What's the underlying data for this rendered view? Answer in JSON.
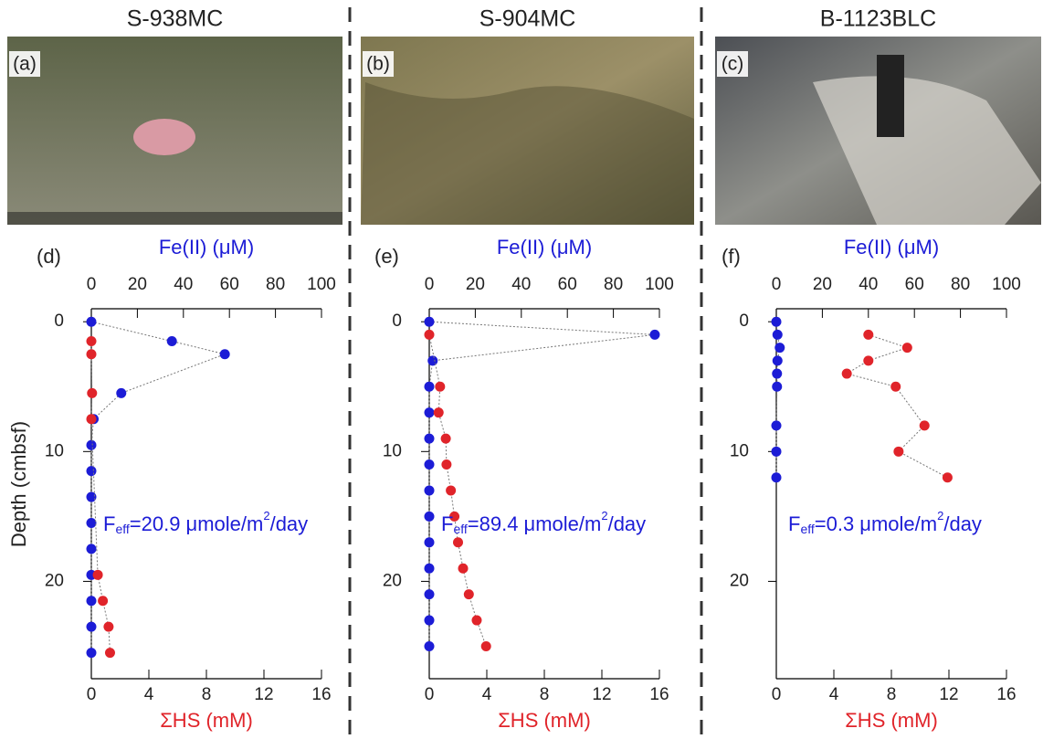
{
  "photos": [
    {
      "label": "(a)"
    },
    {
      "label": "(b)"
    },
    {
      "label": "(c)"
    }
  ],
  "chart_data": [
    {
      "type": "line",
      "title": "S-938MC",
      "panel_label": "(d)",
      "xlabel": "Fe(II) (μM)",
      "x2label": "ΣHS (mM)",
      "ylabel": "Depth (cmbsf)",
      "xlim": [
        0,
        100
      ],
      "xticks": [
        0,
        20,
        40,
        60,
        80,
        100
      ],
      "x2lim": [
        0,
        16
      ],
      "x2ticks": [
        0,
        4,
        8,
        12,
        16
      ],
      "ylim": [
        -1,
        27.5
      ],
      "yticks": [
        0,
        10,
        20
      ],
      "y_inverted": true,
      "series": [
        {
          "color": "#1c1cd6",
          "axis": "x",
          "depth": [
            0,
            1.5,
            2.5,
            5.5,
            7.5,
            9.5,
            11.5,
            13.5,
            15.5,
            17.5,
            19.5,
            21.5,
            23.5,
            25.5
          ],
          "values": [
            0,
            35,
            58,
            13,
            1,
            0,
            0,
            0,
            0,
            0,
            0,
            0,
            0,
            0
          ]
        },
        {
          "color": "#e0242a",
          "axis": "x2",
          "depth": [
            1.5,
            2.5,
            5.5,
            7.5,
            19.5,
            21.5,
            23.5,
            25.5
          ],
          "values": [
            0,
            0,
            0.05,
            0,
            0.45,
            0.8,
            1.2,
            1.3
          ]
        }
      ],
      "annotation": {
        "prefix": "F",
        "sub": "eff",
        "main": "=20.9 μmole/m",
        "sup": "2",
        "suffix": "/day"
      }
    },
    {
      "type": "line",
      "title": "S-904MC",
      "panel_label": "(e)",
      "xlabel": "Fe(II) (μM)",
      "x2label": "ΣHS (mM)",
      "xlim": [
        0,
        100
      ],
      "xticks": [
        0,
        20,
        40,
        60,
        80,
        100
      ],
      "x2lim": [
        0,
        16
      ],
      "x2ticks": [
        0,
        4,
        8,
        12,
        16
      ],
      "ylim": [
        -1,
        27.5
      ],
      "yticks": [
        0,
        10,
        20
      ],
      "y_inverted": true,
      "series": [
        {
          "color": "#1c1cd6",
          "axis": "x",
          "depth": [
            0,
            1,
            3,
            5,
            7,
            9,
            11,
            13,
            15,
            17,
            19,
            21,
            23,
            25
          ],
          "values": [
            0,
            98,
            1.5,
            0,
            0,
            0,
            0,
            0,
            0,
            0,
            0,
            0,
            0,
            0
          ]
        },
        {
          "color": "#e0242a",
          "axis": "x2",
          "depth": [
            1,
            5,
            7,
            9,
            11,
            13,
            15,
            17,
            19,
            21,
            23,
            25
          ],
          "values": [
            0,
            0.75,
            0.65,
            1.15,
            1.2,
            1.5,
            1.75,
            2.0,
            2.35,
            2.75,
            3.3,
            3.95
          ]
        }
      ],
      "annotation": {
        "prefix": "F",
        "sub": "eff",
        "main": "=89.4 μmole/m",
        "sup": "2",
        "suffix": "/day"
      }
    },
    {
      "type": "line",
      "title": "B-1123BLC",
      "panel_label": "(f)",
      "xlabel": "Fe(II) (μM)",
      "x2label": "ΣHS (mM)",
      "xlim": [
        0,
        100
      ],
      "xticks": [
        0,
        20,
        40,
        60,
        80,
        100
      ],
      "x2lim": [
        0,
        16
      ],
      "x2ticks": [
        0,
        4,
        8,
        12,
        16
      ],
      "ylim": [
        -1,
        27.5
      ],
      "yticks": [
        0,
        10,
        20
      ],
      "y_inverted": true,
      "series": [
        {
          "color": "#1c1cd6",
          "axis": "x",
          "depth": [
            0,
            1,
            2,
            3,
            4,
            5,
            8,
            10,
            12
          ],
          "values": [
            0,
            0.5,
            1.5,
            0.5,
            0.3,
            0.3,
            0,
            0,
            0
          ]
        },
        {
          "color": "#e0242a",
          "axis": "x2",
          "depth": [
            1,
            2,
            3,
            4,
            5,
            8,
            10,
            12
          ],
          "values": [
            6.4,
            9.1,
            6.4,
            4.9,
            8.3,
            10.3,
            8.5,
            11.9
          ]
        }
      ],
      "annotation": {
        "prefix": "F",
        "sub": "eff",
        "main": "=0.3 μmole/m",
        "sup": "2",
        "suffix": "/day"
      }
    }
  ]
}
